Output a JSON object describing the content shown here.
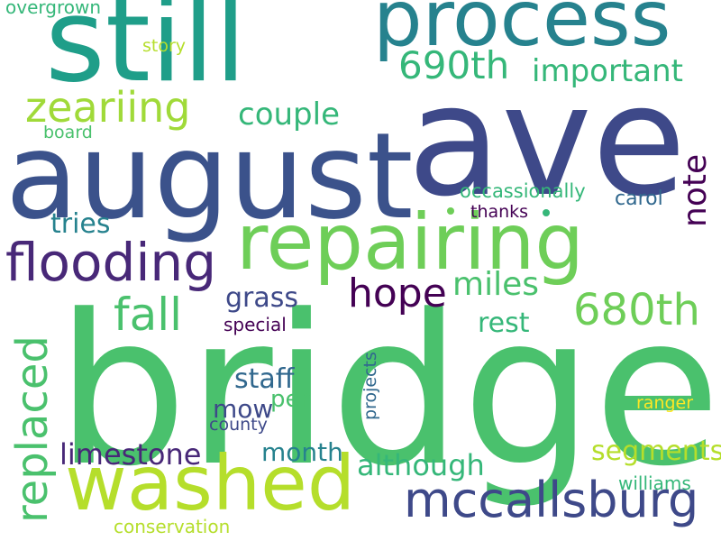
{
  "words": {
    "bridge": "bridge",
    "ave": "ave",
    "august": "august",
    "still": "still",
    "repairing": "repairing",
    "process": "process",
    "washed": "washed",
    "flooding": "flooding",
    "mccallsburg": "mccallsburg",
    "zeariing": "zeariing",
    "replaced": "replaced",
    "hope": "hope",
    "th690": "690th",
    "th680": "680th",
    "important": "important",
    "couple": "couple",
    "fall": "fall",
    "miles": "miles",
    "note": "note",
    "limestone": "limestone",
    "although": "although",
    "segments": "segments",
    "staff": "staff",
    "grass": "grass",
    "tries": "tries",
    "month": "month",
    "mow": "mow",
    "rest": "rest",
    "per": "per",
    "occassionally": "occassionally",
    "carol": "carol",
    "thanks": "thanks",
    "special": "special",
    "county": "county",
    "projects": "projects",
    "williams": "williams",
    "ranger": "ranger",
    "conservation": "conservation",
    "overgrown": "overgrown",
    "story": "story",
    "board": "board"
  },
  "colors": {
    "dark_purple": "#440154",
    "indigo": "#482878",
    "blue": "#3e4989",
    "steel_blue": "#31688e",
    "teal": "#26828e",
    "teal_green": "#1f9e89",
    "green": "#35b779",
    "bright_green": "#4ac16d",
    "lime": "#6ece58",
    "yellow_green": "#b5de2b",
    "yellow": "#fde725"
  }
}
